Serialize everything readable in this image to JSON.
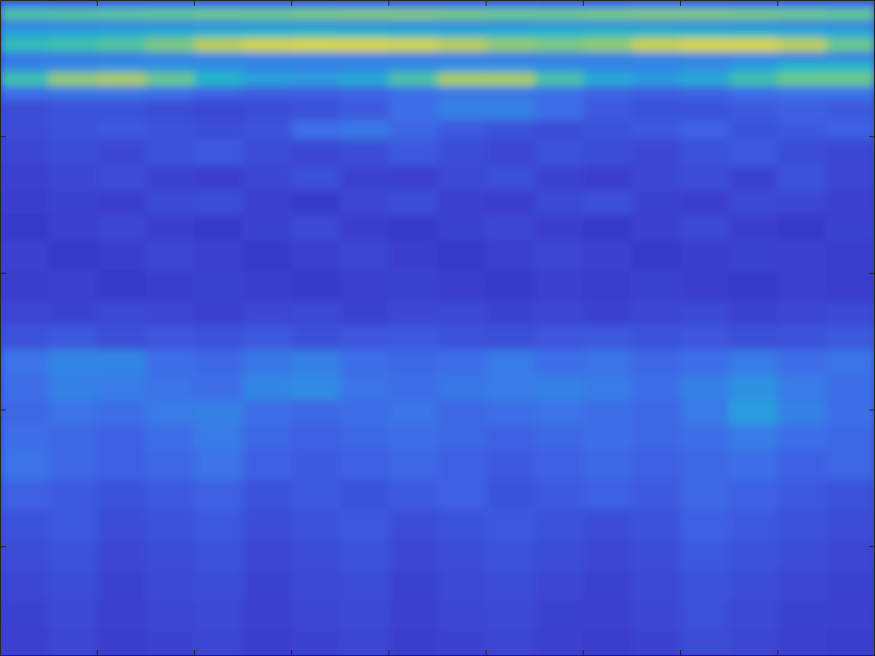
{
  "chart_data": {
    "type": "heatmap",
    "x_bins": [
      0,
      0.5,
      1,
      1.5,
      2,
      2.5,
      3,
      3.5,
      4,
      4.5,
      5,
      5.5,
      6,
      6.5,
      7,
      7.5,
      8,
      8.5,
      9
    ],
    "y_bins": [
      0,
      0.06,
      0.15,
      0.2,
      0.28,
      0.38,
      0.45,
      0.53,
      0.63,
      0.73,
      0.88,
      1.02,
      1.21,
      1.39,
      1.57,
      1.76,
      1.98,
      2.2,
      2.38,
      2.56,
      2.74,
      2.93,
      3.11,
      3.29,
      3.51,
      3.73,
      3.95,
      4.17,
      4.39,
      4.61,
      4.8
    ],
    "cells": [
      [
        0.3,
        0.28,
        0.3,
        0.32,
        0.3,
        0.29,
        0.31,
        0.3,
        0.28,
        0.3,
        0.31,
        0.29,
        0.3,
        0.32,
        0.3,
        0.29,
        0.31,
        0.3
      ],
      [
        0.62,
        0.63,
        0.64,
        0.65,
        0.66,
        0.66,
        0.67,
        0.68,
        0.68,
        0.67,
        0.66,
        0.66,
        0.67,
        0.68,
        0.68,
        0.67,
        0.66,
        0.65
      ],
      [
        0.3,
        0.31,
        0.32,
        0.33,
        0.34,
        0.35,
        0.35,
        0.34,
        0.33,
        0.33,
        0.34,
        0.35,
        0.35,
        0.34,
        0.33,
        0.33,
        0.32,
        0.31
      ],
      [
        0.48,
        0.49,
        0.5,
        0.52,
        0.54,
        0.55,
        0.56,
        0.55,
        0.53,
        0.52,
        0.53,
        0.55,
        0.56,
        0.56,
        0.55,
        0.54,
        0.52,
        0.5
      ],
      [
        0.58,
        0.6,
        0.63,
        0.68,
        0.74,
        0.78,
        0.8,
        0.8,
        0.78,
        0.74,
        0.7,
        0.68,
        0.7,
        0.76,
        0.8,
        0.8,
        0.74,
        0.66
      ],
      [
        0.32,
        0.33,
        0.34,
        0.36,
        0.38,
        0.38,
        0.37,
        0.36,
        0.35,
        0.34,
        0.34,
        0.35,
        0.36,
        0.37,
        0.38,
        0.37,
        0.36,
        0.34
      ],
      [
        0.38,
        0.4,
        0.42,
        0.42,
        0.4,
        0.38,
        0.37,
        0.38,
        0.4,
        0.42,
        0.42,
        0.4,
        0.38,
        0.38,
        0.4,
        0.46,
        0.55,
        0.56
      ],
      [
        0.6,
        0.7,
        0.72,
        0.66,
        0.55,
        0.48,
        0.46,
        0.5,
        0.62,
        0.72,
        0.72,
        0.62,
        0.5,
        0.46,
        0.5,
        0.6,
        0.66,
        0.66
      ],
      [
        0.3,
        0.32,
        0.32,
        0.3,
        0.27,
        0.25,
        0.25,
        0.27,
        0.3,
        0.33,
        0.33,
        0.3,
        0.27,
        0.25,
        0.27,
        0.3,
        0.32,
        0.32
      ],
      [
        0.2,
        0.22,
        0.22,
        0.2,
        0.18,
        0.2,
        0.22,
        0.24,
        0.3,
        0.36,
        0.36,
        0.3,
        0.24,
        0.22,
        0.22,
        0.24,
        0.26,
        0.24
      ],
      [
        0.2,
        0.22,
        0.24,
        0.22,
        0.2,
        0.22,
        0.3,
        0.33,
        0.28,
        0.24,
        0.22,
        0.2,
        0.22,
        0.24,
        0.26,
        0.22,
        0.24,
        0.26
      ],
      [
        0.18,
        0.2,
        0.18,
        0.22,
        0.24,
        0.2,
        0.18,
        0.2,
        0.24,
        0.2,
        0.18,
        0.22,
        0.2,
        0.18,
        0.22,
        0.24,
        0.2,
        0.18
      ],
      [
        0.16,
        0.18,
        0.2,
        0.17,
        0.15,
        0.18,
        0.21,
        0.17,
        0.16,
        0.19,
        0.21,
        0.17,
        0.15,
        0.18,
        0.2,
        0.17,
        0.22,
        0.18
      ],
      [
        0.15,
        0.17,
        0.15,
        0.19,
        0.2,
        0.16,
        0.14,
        0.18,
        0.2,
        0.16,
        0.15,
        0.19,
        0.21,
        0.17,
        0.15,
        0.19,
        0.18,
        0.16
      ],
      [
        0.14,
        0.16,
        0.18,
        0.15,
        0.14,
        0.17,
        0.19,
        0.15,
        0.14,
        0.17,
        0.18,
        0.15,
        0.14,
        0.16,
        0.19,
        0.15,
        0.14,
        0.17
      ],
      [
        0.16,
        0.14,
        0.15,
        0.18,
        0.16,
        0.14,
        0.16,
        0.18,
        0.15,
        0.14,
        0.16,
        0.18,
        0.16,
        0.14,
        0.15,
        0.17,
        0.16,
        0.15
      ],
      [
        0.15,
        0.16,
        0.14,
        0.15,
        0.17,
        0.15,
        0.14,
        0.16,
        0.17,
        0.15,
        0.14,
        0.16,
        0.15,
        0.17,
        0.15,
        0.14,
        0.16,
        0.15
      ],
      [
        0.18,
        0.17,
        0.19,
        0.18,
        0.16,
        0.18,
        0.19,
        0.17,
        0.18,
        0.19,
        0.17,
        0.18,
        0.16,
        0.18,
        0.19,
        0.17,
        0.18,
        0.19
      ],
      [
        0.22,
        0.24,
        0.21,
        0.23,
        0.22,
        0.24,
        0.21,
        0.23,
        0.24,
        0.22,
        0.21,
        0.23,
        0.24,
        0.22,
        0.23,
        0.21,
        0.22,
        0.24
      ],
      [
        0.32,
        0.38,
        0.38,
        0.3,
        0.28,
        0.33,
        0.36,
        0.3,
        0.28,
        0.3,
        0.34,
        0.3,
        0.32,
        0.28,
        0.3,
        0.34,
        0.3,
        0.32
      ],
      [
        0.3,
        0.36,
        0.34,
        0.32,
        0.3,
        0.38,
        0.4,
        0.32,
        0.3,
        0.33,
        0.35,
        0.36,
        0.34,
        0.3,
        0.36,
        0.42,
        0.34,
        0.3
      ],
      [
        0.28,
        0.32,
        0.3,
        0.34,
        0.36,
        0.3,
        0.28,
        0.3,
        0.32,
        0.28,
        0.3,
        0.32,
        0.3,
        0.28,
        0.34,
        0.46,
        0.36,
        0.3
      ],
      [
        0.3,
        0.28,
        0.26,
        0.3,
        0.34,
        0.28,
        0.26,
        0.28,
        0.3,
        0.28,
        0.26,
        0.28,
        0.3,
        0.28,
        0.3,
        0.34,
        0.3,
        0.28
      ],
      [
        0.32,
        0.28,
        0.26,
        0.28,
        0.32,
        0.26,
        0.24,
        0.26,
        0.28,
        0.26,
        0.24,
        0.26,
        0.28,
        0.26,
        0.28,
        0.3,
        0.26,
        0.28
      ],
      [
        0.26,
        0.24,
        0.22,
        0.24,
        0.26,
        0.22,
        0.24,
        0.22,
        0.24,
        0.26,
        0.22,
        0.24,
        0.26,
        0.24,
        0.28,
        0.26,
        0.24,
        0.22
      ],
      [
        0.22,
        0.24,
        0.2,
        0.22,
        0.24,
        0.2,
        0.22,
        0.24,
        0.2,
        0.22,
        0.24,
        0.22,
        0.2,
        0.22,
        0.26,
        0.24,
        0.22,
        0.2
      ],
      [
        0.2,
        0.22,
        0.18,
        0.2,
        0.22,
        0.18,
        0.2,
        0.22,
        0.18,
        0.2,
        0.22,
        0.2,
        0.18,
        0.2,
        0.24,
        0.22,
        0.2,
        0.18
      ],
      [
        0.18,
        0.2,
        0.17,
        0.19,
        0.2,
        0.17,
        0.19,
        0.2,
        0.17,
        0.19,
        0.2,
        0.18,
        0.17,
        0.19,
        0.22,
        0.2,
        0.18,
        0.17
      ],
      [
        0.17,
        0.19,
        0.16,
        0.18,
        0.19,
        0.16,
        0.18,
        0.19,
        0.16,
        0.18,
        0.19,
        0.17,
        0.16,
        0.18,
        0.21,
        0.19,
        0.17,
        0.16
      ],
      [
        0.16,
        0.18,
        0.15,
        0.17,
        0.18,
        0.15,
        0.17,
        0.18,
        0.15,
        0.17,
        0.18,
        0.16,
        0.15,
        0.17,
        0.2,
        0.18,
        0.16,
        0.15
      ]
    ],
    "zlim": [
      0,
      1
    ],
    "xlim": [
      0,
      9
    ],
    "ylim": [
      0,
      4.8
    ],
    "xticks": [
      1,
      2,
      3,
      4,
      5,
      6,
      7,
      8
    ],
    "yticks": [
      1,
      2,
      3,
      4
    ],
    "tick_labels": false
  }
}
